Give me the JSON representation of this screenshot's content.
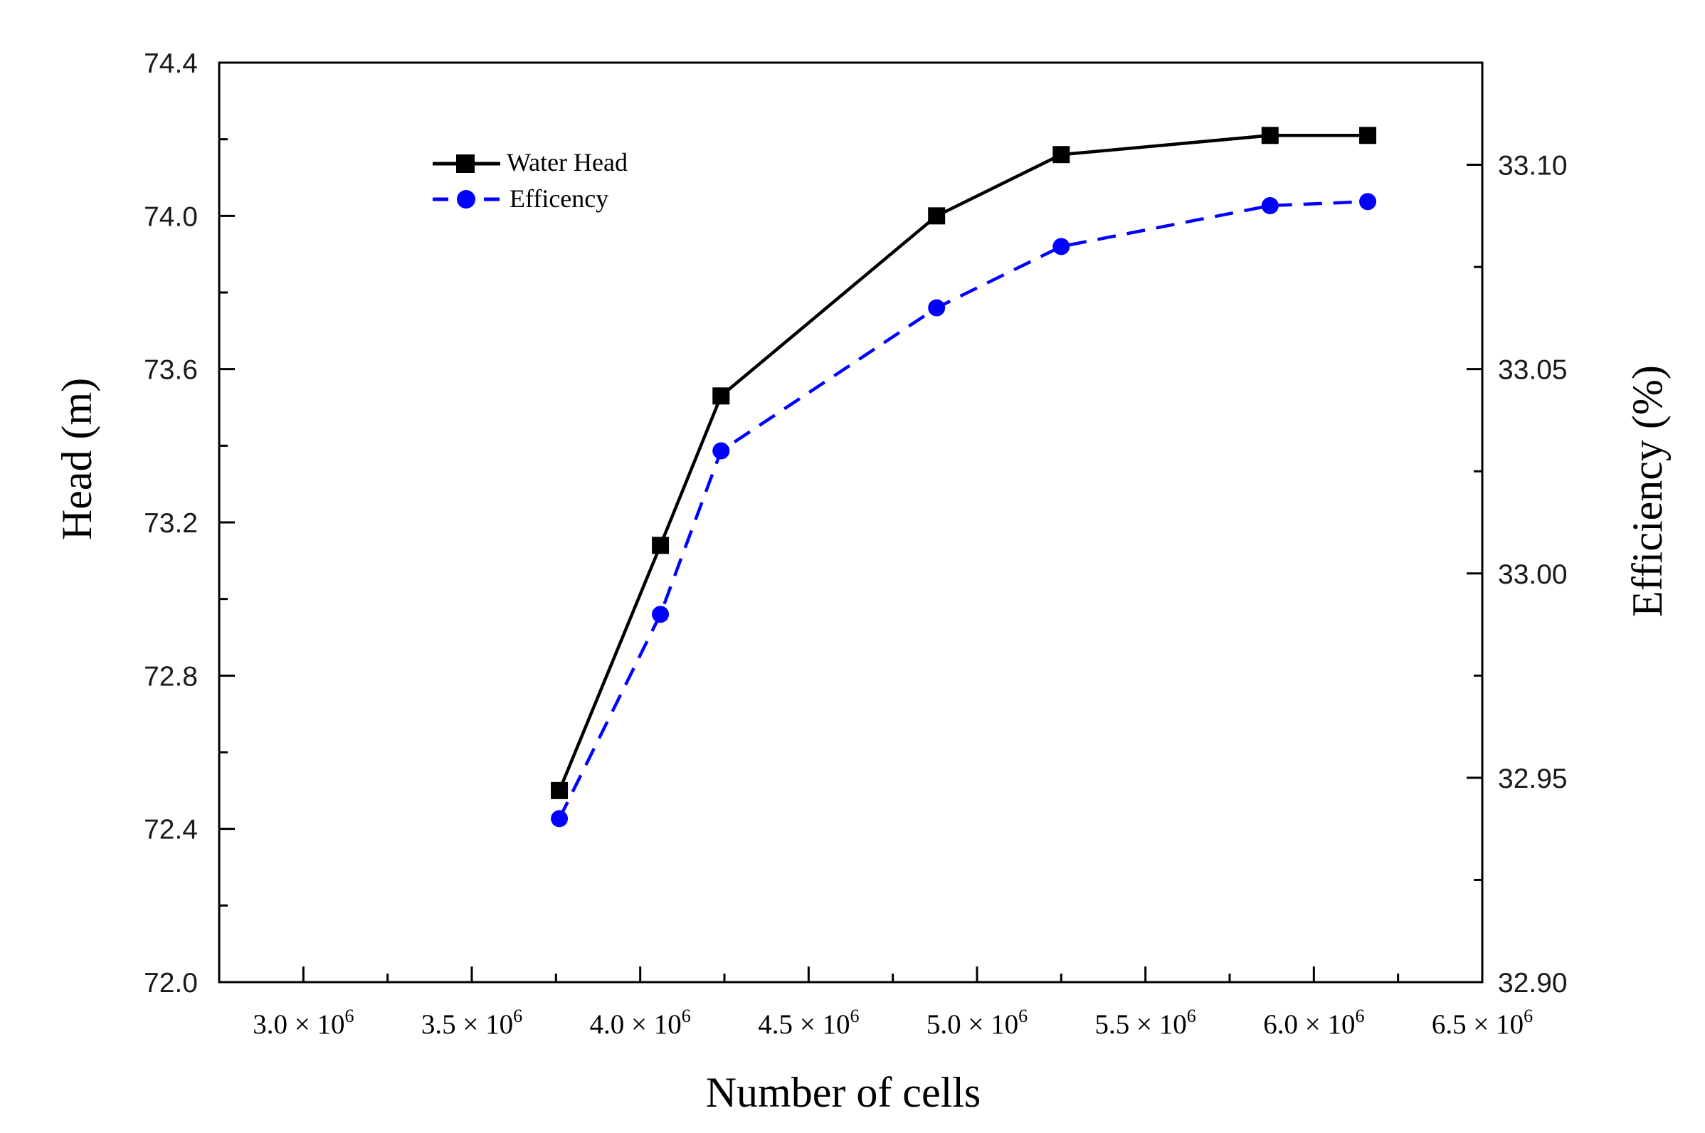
{
  "chart_data": {
    "type": "line",
    "title": "",
    "xlabel": "Number of cells",
    "ylabel_left": "Head (m)",
    "ylabel_right": "Efficiency (%)",
    "xlim": [
      2750000,
      6500000
    ],
    "ylim_left": [
      72.0,
      74.4
    ],
    "ylim_right": [
      32.9,
      33.125
    ],
    "x_ticks": [
      {
        "value": 3000000,
        "base": "3.0 × 10",
        "exp": "6"
      },
      {
        "value": 3500000,
        "base": "3.5 × 10",
        "exp": "6"
      },
      {
        "value": 4000000,
        "base": "4.0 × 10",
        "exp": "6"
      },
      {
        "value": 4500000,
        "base": "4.5 × 10",
        "exp": "6"
      },
      {
        "value": 5000000,
        "base": "5.0 × 10",
        "exp": "6"
      },
      {
        "value": 5500000,
        "base": "5.5 × 10",
        "exp": "6"
      },
      {
        "value": 6000000,
        "base": "6.0 × 10",
        "exp": "6"
      },
      {
        "value": 6500000,
        "base": "6.5 × 10",
        "exp": "6"
      }
    ],
    "y_ticks_left": [
      {
        "value": 72.0,
        "label": "72.0"
      },
      {
        "value": 72.4,
        "label": "72.4"
      },
      {
        "value": 72.8,
        "label": "72.8"
      },
      {
        "value": 73.2,
        "label": "73.2"
      },
      {
        "value": 73.6,
        "label": "73.6"
      },
      {
        "value": 74.0,
        "label": "74.0"
      },
      {
        "value": 74.4,
        "label": "74.4"
      }
    ],
    "y_ticks_right": [
      {
        "value": 32.9,
        "label": "32.90"
      },
      {
        "value": 32.95,
        "label": "32.95"
      },
      {
        "value": 33.0,
        "label": "33.00"
      },
      {
        "value": 33.05,
        "label": "33.05"
      },
      {
        "value": 33.1,
        "label": "33.10"
      }
    ],
    "x": [
      3760000,
      4060000,
      4240000,
      4880000,
      5250000,
      5870000,
      6160000
    ],
    "series": [
      {
        "name": "Water Head",
        "axis": "left",
        "color": "#000000",
        "marker": "square",
        "line": "solid",
        "values": [
          72.5,
          73.14,
          73.53,
          74.0,
          74.16,
          74.21,
          74.21
        ]
      },
      {
        "name": "Efficency",
        "axis": "right",
        "color": "#0000ff",
        "marker": "circle",
        "line": "dashed",
        "values": [
          32.94,
          32.99,
          33.03,
          33.065,
          33.08,
          33.09,
          33.091
        ]
      }
    ],
    "legend": {
      "position": "top-left",
      "entries": [
        "Water Head",
        "Efficency"
      ]
    }
  }
}
